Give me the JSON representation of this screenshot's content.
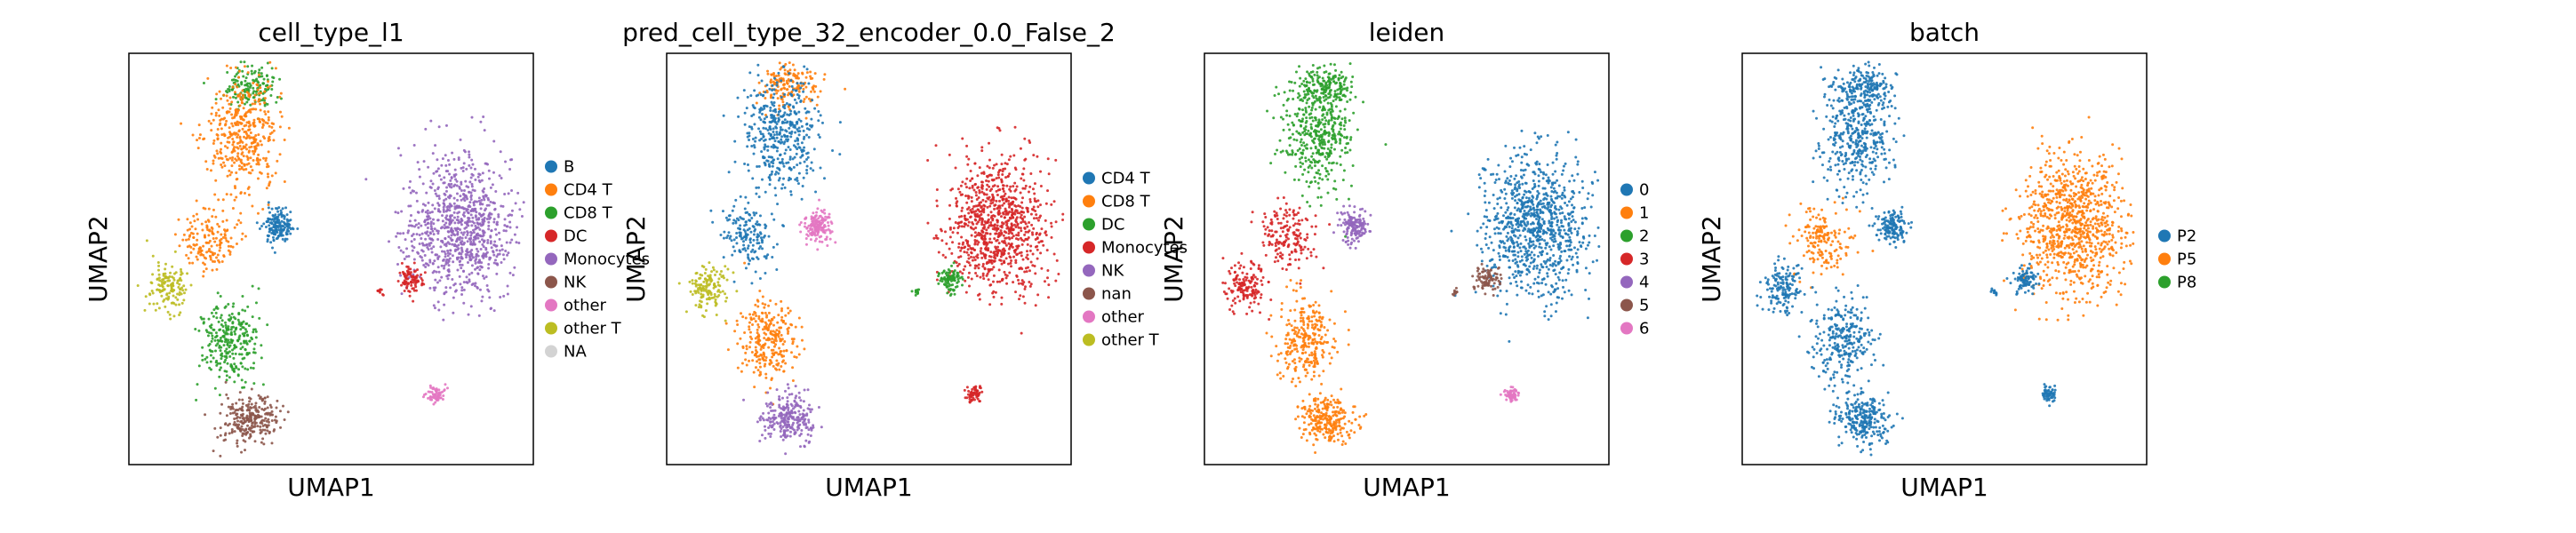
{
  "figure": {
    "type": "scatter"
  },
  "chart_data": [
    {
      "type": "scatter",
      "title": "cell_type_l1",
      "xlabel": "UMAP1",
      "ylabel": "UMAP2",
      "legend": "right",
      "series": [
        {
          "name": "B",
          "color": "#1f77b4"
        },
        {
          "name": "CD4 T",
          "color": "#ff7f0e"
        },
        {
          "name": "CD8 T",
          "color": "#2ca02c"
        },
        {
          "name": "DC",
          "color": "#d62728"
        },
        {
          "name": "Monocytes",
          "color": "#9467bd"
        },
        {
          "name": "NK",
          "color": "#8c564b"
        },
        {
          "name": "other",
          "color": "#e377c2"
        },
        {
          "name": "other T",
          "color": "#bcbd22"
        },
        {
          "name": "NA",
          "color": "#d3d3d3"
        }
      ]
    },
    {
      "type": "scatter",
      "title": "pred_cell_type_32_encoder_0.0_False_2",
      "xlabel": "UMAP1",
      "ylabel": "UMAP2",
      "legend": "right",
      "series": [
        {
          "name": "CD4 T",
          "color": "#1f77b4"
        },
        {
          "name": "CD8 T",
          "color": "#ff7f0e"
        },
        {
          "name": "DC",
          "color": "#2ca02c"
        },
        {
          "name": "Monocytes",
          "color": "#d62728"
        },
        {
          "name": "NK",
          "color": "#9467bd"
        },
        {
          "name": "nan",
          "color": "#8c564b"
        },
        {
          "name": "other",
          "color": "#e377c2"
        },
        {
          "name": "other T",
          "color": "#bcbd22"
        }
      ]
    },
    {
      "type": "scatter",
      "title": "leiden",
      "xlabel": "UMAP1",
      "ylabel": "UMAP2",
      "legend": "right",
      "series": [
        {
          "name": "0",
          "color": "#1f77b4"
        },
        {
          "name": "1",
          "color": "#ff7f0e"
        },
        {
          "name": "2",
          "color": "#2ca02c"
        },
        {
          "name": "3",
          "color": "#d62728"
        },
        {
          "name": "4",
          "color": "#9467bd"
        },
        {
          "name": "5",
          "color": "#8c564b"
        },
        {
          "name": "6",
          "color": "#e377c2"
        }
      ]
    },
    {
      "type": "scatter",
      "title": "batch",
      "xlabel": "UMAP1",
      "ylabel": "UMAP2",
      "legend": "right",
      "series": [
        {
          "name": "P2",
          "color": "#1f77b4"
        },
        {
          "name": "P5",
          "color": "#ff7f0e"
        },
        {
          "name": "P8",
          "color": "#2ca02c"
        }
      ]
    }
  ]
}
